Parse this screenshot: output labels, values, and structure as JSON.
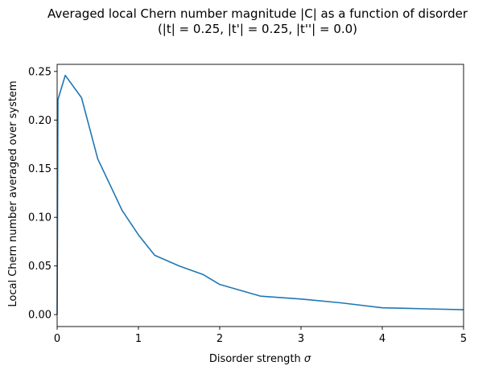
{
  "chart_data": {
    "type": "line",
    "title_line1": "Averaged local Chern number magnitude |C| as a function of disorder",
    "title_line2": "(|t| = 0.25, |t'| = 0.25, |t''| = 0.0)",
    "xlabel_prefix": "Disorder strength ",
    "xlabel_symbol": "σ",
    "ylabel": "Local Chern number averaged over system",
    "xlim": [
      0,
      5
    ],
    "ylim": [
      -0.0123,
      0.2573
    ],
    "xticks": [
      0,
      1,
      2,
      3,
      4,
      5
    ],
    "xtick_labels": [
      "0",
      "1",
      "2",
      "3",
      "4",
      "5"
    ],
    "yticks": [
      0.0,
      0.05,
      0.1,
      0.15,
      0.2,
      0.25
    ],
    "ytick_labels": [
      "0.00",
      "0.05",
      "0.10",
      "0.15",
      "0.20",
      "0.25"
    ],
    "grid": false,
    "line_color": "#1f77b4",
    "series": [
      {
        "x": [
          0.0,
          0.01,
          0.1,
          0.3,
          0.5,
          0.8,
          1.0,
          1.2,
          1.5,
          1.8,
          2.0,
          2.5,
          3.0,
          3.5,
          4.0,
          4.5,
          5.0
        ],
        "y": [
          0.0,
          0.221,
          0.246,
          0.223,
          0.16,
          0.107,
          0.082,
          0.061,
          0.05,
          0.041,
          0.031,
          0.019,
          0.016,
          0.012,
          0.007,
          0.006,
          0.005
        ]
      }
    ]
  }
}
